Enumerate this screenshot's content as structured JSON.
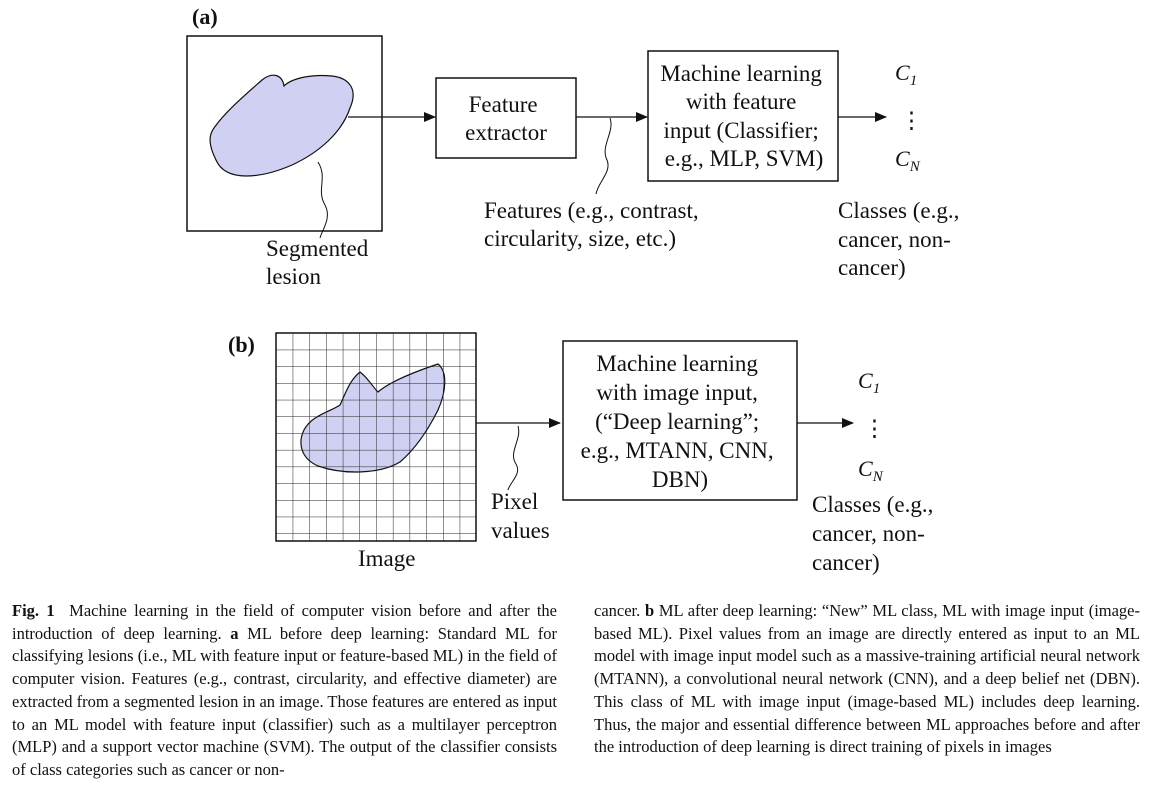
{
  "panel_a": {
    "tag": "(a)",
    "segmented_label": [
      "Segmented",
      "lesion"
    ],
    "feature_extractor": [
      "Feature",
      "extractor"
    ],
    "classifier": [
      "Machine learning",
      "with feature",
      "input (Classifier;",
      "e.g., MLP, SVM)"
    ],
    "features_label": [
      "Features (e.g., contrast,",
      "circularity, size, etc.)"
    ],
    "class_top": "C",
    "class_top_sub": "1",
    "class_dots": "⋮",
    "class_bottom": "C",
    "class_bottom_sub": "N",
    "classes_label": [
      "Classes (e.g.,",
      "cancer, non-",
      "cancer)"
    ],
    "lesion_color": "#d0d0f2"
  },
  "panel_b": {
    "tag": "(b)",
    "image_label": "Image",
    "pixel_label": [
      "Pixel",
      "values"
    ],
    "deep_box": [
      "Machine learning",
      "with image input,",
      "(“Deep learning”;",
      "e.g., MTANN, CNN,",
      "DBN)"
    ],
    "class_top": "C",
    "class_top_sub": "1",
    "class_dots": "⋮",
    "class_bottom": "C",
    "class_bottom_sub": "N",
    "classes_label": [
      "Classes (e.g.,",
      "cancer, non-",
      "cancer)"
    ]
  },
  "caption": {
    "fig_label": "Fig. 1",
    "left_a": "Machine learning in the field of computer vision before and after the introduction of deep learning.",
    "a_label": "a",
    "left_b": "ML before deep learning: Standard ML for classifying lesions (i.e., ML with feature input or feature-based ML) in the field of computer vision. Features (e.g., contrast, circularity, and effective diameter) are extracted from a segmented lesion in an image. Those features are entered as input to an ML model with feature input (classifier) such as a multilayer perceptron (MLP) and a support vector machine (SVM). The output of the classifier consists of class categories such as cancer or non-",
    "right_a": "cancer.",
    "b_label": "b",
    "right_b": "ML after deep learning: “New” ML class, ML with image input (image-based ML). Pixel values from an image are directly entered as input to an ML model with image input model such as a massive-training artificial neural network (MTANN), a convolutional neural network (CNN), and a deep belief net (DBN). This class of ML with image input (image-based ML) includes deep learning. Thus, the major and essential difference between ML approaches before and after the introduction of deep learning is direct training of pixels in images"
  }
}
